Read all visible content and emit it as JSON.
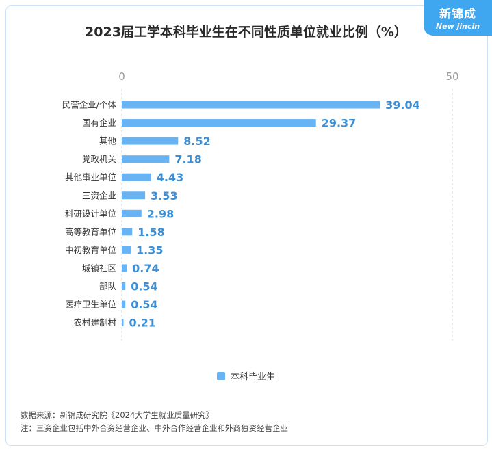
{
  "title": "2023届工学本科毕业生在不同性质单位就业比例（%）",
  "logo": {
    "cn": "新锦成",
    "en": "New jincin"
  },
  "chart_data": {
    "type": "bar",
    "orientation": "horizontal",
    "title": "2023届工学本科毕业生在不同性质单位就业比例（%）",
    "categories": [
      "民营企业/个体",
      "国有企业",
      "其他",
      "党政机关",
      "其他事业单位",
      "三资企业",
      "科研设计单位",
      "高等教育单位",
      "中初教育单位",
      "城镇社区",
      "部队",
      "医疗卫生单位",
      "农村建制村"
    ],
    "series": [
      {
        "name": "本科毕业生",
        "values": [
          39.04,
          29.37,
          8.52,
          7.18,
          4.43,
          3.53,
          2.98,
          1.58,
          1.35,
          0.74,
          0.54,
          0.54,
          0.21
        ]
      }
    ],
    "value_labels": [
      "39.04",
      "29.37",
      "8.52",
      "7.18",
      "4.43",
      "3.53",
      "2.98",
      "1.58",
      "1.35",
      "0.74",
      "0.54",
      "0.54",
      "0.21"
    ],
    "xlim": [
      0,
      50
    ],
    "xticks": [
      "0",
      "50"
    ],
    "axis_position": "top",
    "grid": false,
    "legend_position": "bottom",
    "bar_color": "#67b3f3",
    "label_color": "#3b8fd6"
  },
  "legend": {
    "label": "本科毕业生"
  },
  "footer": {
    "source": "数据来源：新锦成研究院《2024大学生就业质量研究》",
    "note": "注：三资企业包括中外合资经营企业、中外合作经营企业和外商独资经营企业"
  }
}
